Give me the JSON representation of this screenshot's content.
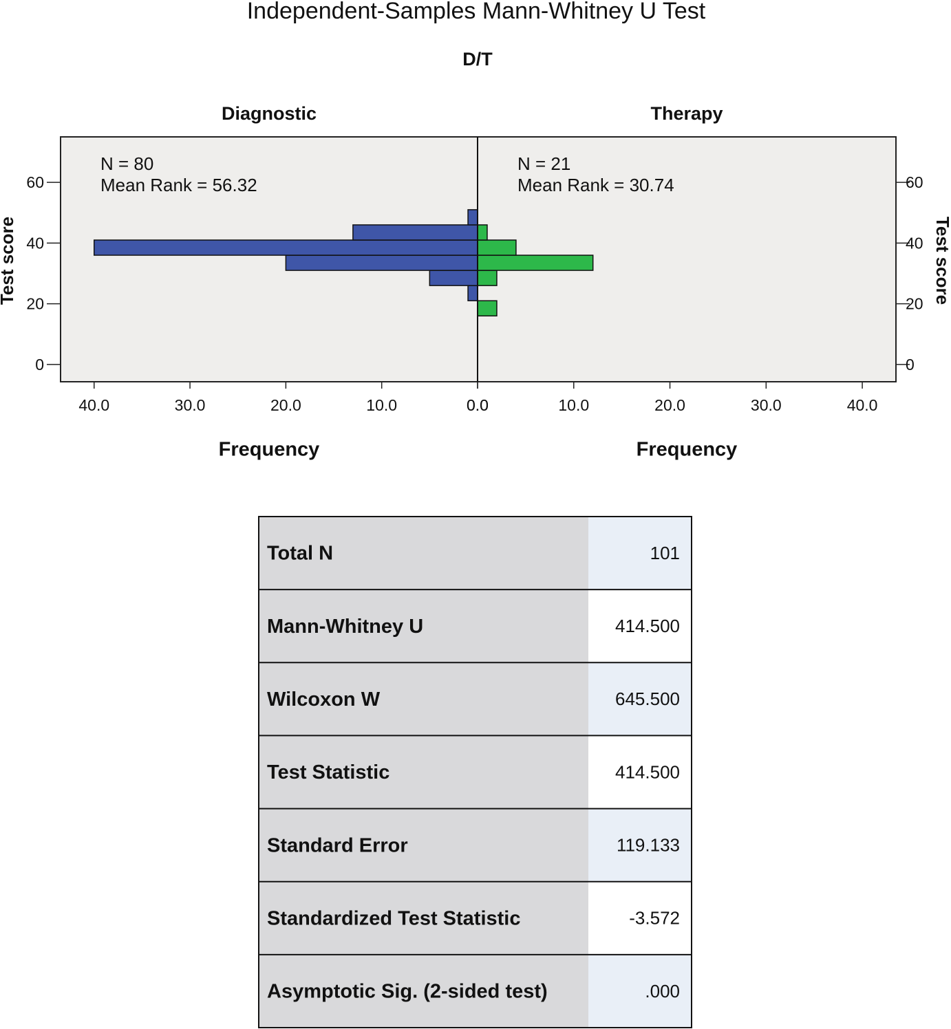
{
  "chart_data": {
    "type": "histogram",
    "title": "Independent-Samples Mann-Whitney U Test",
    "subtitle": "D/T",
    "xlabel": "Frequency",
    "ylabel": "Test score",
    "bins": [
      16,
      21,
      26,
      31,
      36,
      41,
      46,
      51
    ],
    "series": [
      {
        "name": "Diagnostic",
        "color": "#3f56a8",
        "values": [
          0,
          1,
          5,
          20,
          40,
          13,
          1
        ],
        "annotations": [
          "N = 80",
          "Mean Rank = 56.32"
        ]
      },
      {
        "name": "Therapy",
        "color": "#2db84a",
        "values": [
          2,
          0,
          2,
          12,
          4,
          1,
          0
        ],
        "annotations": [
          "N = 21",
          "Mean Rank = 30.74"
        ]
      }
    ],
    "xlim": [
      0,
      43.5
    ],
    "xticks": [
      {
        "value": 0,
        "label": "0.0"
      },
      {
        "value": 10,
        "label": "10.0"
      },
      {
        "value": 20,
        "label": "20.0"
      },
      {
        "value": 30,
        "label": "30.0"
      },
      {
        "value": 40,
        "label": "40.0"
      }
    ],
    "ylim": [
      -5.7,
      75
    ],
    "yticks": [
      0,
      20,
      40,
      60
    ]
  },
  "table": {
    "rows": [
      [
        "Total N",
        "101"
      ],
      [
        "Mann-Whitney U",
        "414.500"
      ],
      [
        "Wilcoxon W",
        "645.500"
      ],
      [
        "Test Statistic",
        "414.500"
      ],
      [
        "Standard Error",
        "119.133"
      ],
      [
        "Standardized Test Statistic",
        "-3.572"
      ],
      [
        "Asymptotic Sig. (2-sided test)",
        ".000"
      ]
    ]
  }
}
